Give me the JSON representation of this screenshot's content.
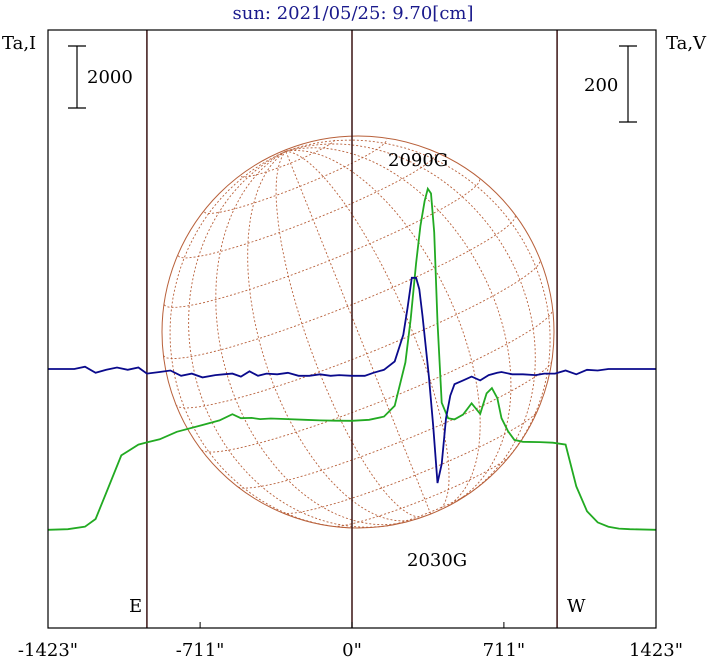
{
  "chart_data": {
    "type": "line",
    "title": "sun: 2021/05/25: 9.70[cm]",
    "left_axis_label": "Ta,I",
    "right_axis_label": "Ta,V",
    "left_scale_bar_label": "2000",
    "right_scale_bar_label": "200",
    "x_tick_labels": [
      "-1423\"",
      "-711\"",
      "0\"",
      "711\"",
      "1423\""
    ],
    "x_tick_values": [
      -1423,
      -711,
      0,
      711,
      1423
    ],
    "xlim": [
      -1423,
      1423
    ],
    "vertical_markers": [
      -960,
      0,
      960
    ],
    "east_label": "E",
    "west_label": "W",
    "annotations": [
      {
        "text": "2090G",
        "x": 310,
        "y_series": "V"
      },
      {
        "text": "2030G",
        "x": 400,
        "y_series": "V"
      }
    ],
    "colors": {
      "title": "#1a1a8c",
      "series_I": "#22aa22",
      "series_V": "#0a0a8c",
      "solar_grid": "#b8603a",
      "markers": "#3a1414",
      "frame": "#000000"
    },
    "series": [
      {
        "name": "I",
        "x": [
          -1423,
          -1330,
          -1250,
          -1200,
          -1150,
          -1080,
          -1000,
          -960,
          -900,
          -820,
          -700,
          -620,
          -560,
          -520,
          -470,
          -430,
          -380,
          -300,
          -220,
          -150,
          -80,
          0,
          80,
          150,
          200,
          250,
          275,
          300,
          320,
          340,
          355,
          370,
          385,
          400,
          420,
          450,
          480,
          520,
          560,
          600,
          630,
          655,
          680,
          700,
          730,
          760,
          800,
          880,
          940,
          1000,
          1050,
          1100,
          1150,
          1200,
          1250,
          1300,
          1423
        ],
        "y": [
          -3800,
          -3780,
          -3700,
          -3450,
          -2600,
          -1400,
          -1050,
          -980,
          -880,
          -640,
          -420,
          -270,
          -70,
          -200,
          -190,
          -230,
          -210,
          -230,
          -250,
          -270,
          -280,
          -285,
          -250,
          -150,
          200,
          1600,
          3000,
          4800,
          6000,
          6800,
          7200,
          7050,
          5800,
          2900,
          300,
          -200,
          -240,
          -80,
          280,
          -60,
          600,
          770,
          450,
          -200,
          -620,
          -900,
          -960,
          -970,
          -990,
          -1050,
          -2400,
          -3200,
          -3560,
          -3700,
          -3760,
          -3780,
          -3800
        ]
      },
      {
        "name": "V",
        "x": [
          -1423,
          -1300,
          -1250,
          -1200,
          -1150,
          -1100,
          -1050,
          -1000,
          -960,
          -900,
          -850,
          -800,
          -750,
          -700,
          -640,
          -600,
          -560,
          -520,
          -480,
          -440,
          -400,
          -350,
          -300,
          -250,
          -200,
          -150,
          -100,
          -60,
          0,
          60,
          100,
          150,
          200,
          240,
          260,
          280,
          300,
          315,
          330,
          345,
          360,
          380,
          400,
          420,
          440,
          460,
          480,
          520,
          560,
          600,
          640,
          680,
          700,
          750,
          800,
          860,
          900,
          950,
          1000,
          1050,
          1100,
          1150,
          1200,
          1300,
          1423
        ],
        "y": [
          0,
          0,
          6,
          -10,
          -2,
          4,
          -2,
          4,
          -12,
          -8,
          -4,
          -18,
          -12,
          -22,
          -16,
          -14,
          -12,
          -20,
          -6,
          -18,
          -12,
          -14,
          -10,
          -18,
          -18,
          -14,
          -18,
          -16,
          -18,
          -18,
          -10,
          -2,
          20,
          90,
          160,
          240,
          240,
          210,
          140,
          60,
          -20,
          -150,
          -300,
          -250,
          -130,
          -70,
          -40,
          -30,
          -20,
          -30,
          -16,
          -10,
          -8,
          -14,
          -14,
          -16,
          -12,
          -12,
          -4,
          -14,
          -2,
          -4,
          0,
          0,
          0
        ]
      }
    ]
  }
}
